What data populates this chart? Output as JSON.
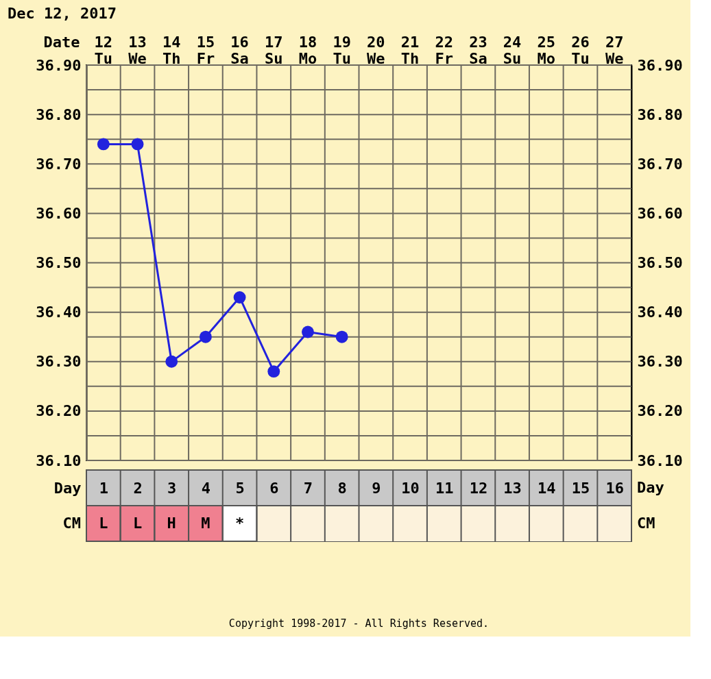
{
  "chart_data": [
    {
      "type": "line",
      "title": "Dec 12, 2017",
      "xlabel": "Date",
      "categories": [
        "12 Tu",
        "13 We",
        "14 Th",
        "15 Fr",
        "16 Sa",
        "17 Su",
        "18 Mo",
        "19 Tu",
        "20 We",
        "21 Th",
        "22 Fr",
        "23 Sa",
        "24 Su",
        "25 Mo",
        "26 Tu",
        "27 We"
      ],
      "series": [
        {
          "color": "#2222dd",
          "values": [
            36.74,
            36.74,
            36.3,
            36.35,
            36.43,
            36.28,
            36.36,
            36.35,
            null,
            null,
            null,
            null,
            null,
            null,
            null,
            null
          ]
        }
      ],
      "ylim": [
        36.1,
        36.9
      ],
      "yticks": [
        {
          "value": 36.1,
          "label": "36.10"
        },
        {
          "value": 36.15,
          "label": null
        },
        {
          "value": 36.2,
          "label": "36.20"
        },
        {
          "value": 36.25,
          "label": null
        },
        {
          "value": 36.3,
          "label": "36.30"
        },
        {
          "value": 36.35,
          "label": null
        },
        {
          "value": 36.4,
          "label": "36.40"
        },
        {
          "value": 36.45,
          "label": null
        },
        {
          "value": 36.5,
          "label": "36.50"
        },
        {
          "value": 36.55,
          "label": null
        },
        {
          "value": 36.6,
          "label": "36.60"
        },
        {
          "value": 36.65,
          "label": null
        },
        {
          "value": 36.7,
          "label": "36.70"
        },
        {
          "value": 36.75,
          "label": null
        },
        {
          "value": 36.8,
          "label": "36.80"
        },
        {
          "value": 36.85,
          "label": null
        },
        {
          "value": 36.9,
          "label": "36.90"
        }
      ],
      "y2lim": [
        36.1,
        36.9
      ],
      "y2ticks": [
        {
          "value": 36.1,
          "label": "36.10"
        },
        {
          "value": 36.15,
          "label": null
        },
        {
          "value": 36.2,
          "label": "36.20"
        },
        {
          "value": 36.25,
          "label": null
        },
        {
          "value": 36.3,
          "label": "36.30"
        },
        {
          "value": 36.35,
          "label": null
        },
        {
          "value": 36.4,
          "label": "36.40"
        },
        {
          "value": 36.45,
          "label": null
        },
        {
          "value": 36.5,
          "label": "36.50"
        },
        {
          "value": 36.55,
          "label": null
        },
        {
          "value": 36.6,
          "label": "36.60"
        },
        {
          "value": 36.65,
          "label": null
        },
        {
          "value": 36.7,
          "label": "36.70"
        },
        {
          "value": 36.75,
          "label": null
        },
        {
          "value": 36.8,
          "label": "36.80"
        },
        {
          "value": 36.85,
          "label": null
        },
        {
          "value": 36.9,
          "label": "36.90"
        }
      ],
      "x2label": "Day",
      "x2lim": [
        0.5,
        16.5
      ],
      "x2ticks": [
        1,
        2,
        3,
        4,
        5,
        6,
        7,
        8,
        9,
        10,
        11,
        12,
        13,
        14,
        15,
        16
      ],
      "grid": true,
      "marker": "circle",
      "line_style": "solid"
    },
    {
      "type": "other",
      "ylabel": "CM",
      "cell_labels": [
        [
          "L",
          "L",
          "H",
          "M",
          "*",
          null,
          null,
          null,
          null,
          null,
          null,
          null,
          null,
          null,
          null,
          null
        ]
      ],
      "colors": [
        "#f08090",
        "#f08090",
        "#f08090",
        "#f08090",
        "#ffffff",
        "#fcf2dc",
        "#fcf2dc",
        "#fcf2dc",
        "#fcf2dc",
        "#fcf2dc",
        "#fcf2dc",
        "#fcf2dc",
        "#fcf2dc",
        "#fcf2dc",
        "#fcf2dc",
        "#fcf2dc"
      ],
      "annotations": [
        "Copyright 1998-2017 - All Rights Reserved."
      ]
    }
  ]
}
